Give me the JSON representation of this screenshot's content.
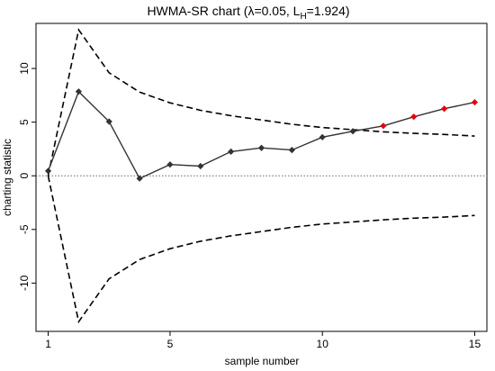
{
  "chart_data": {
    "type": "line",
    "title": "HWMA-SR chart (λ=0.05, L",
    "title_subscript": "H",
    "title_suffix": "=1.924)",
    "xlabel": "sample number",
    "ylabel": "charting statistic",
    "xlim": [
      0.6,
      15.4
    ],
    "ylim": [
      -14.5,
      14.2
    ],
    "x_ticks": [
      1,
      5,
      10,
      15
    ],
    "y_ticks": [
      -10,
      -5,
      0,
      5,
      10
    ],
    "x_tick_labels": [
      "1",
      "5",
      "10",
      "15"
    ],
    "y_tick_labels": [
      "-10",
      "-5",
      "0",
      "5",
      "10"
    ],
    "center_line": 0,
    "grid": false,
    "series": [
      {
        "role": "statistic",
        "x": [
          1,
          2,
          3,
          4,
          5,
          6,
          7,
          8,
          9,
          10,
          11,
          12,
          13,
          14,
          15
        ],
        "values": [
          0.45,
          7.85,
          5.05,
          -0.25,
          1.05,
          0.9,
          2.25,
          2.6,
          2.4,
          3.6,
          4.15,
          4.65,
          5.5,
          6.25,
          6.85
        ],
        "out_of_control": [
          false,
          false,
          false,
          false,
          false,
          false,
          false,
          false,
          false,
          false,
          false,
          true,
          true,
          true,
          true
        ]
      },
      {
        "role": "upper-limit",
        "x": [
          1,
          2,
          3,
          4,
          5,
          6,
          7,
          8,
          9,
          10,
          11,
          12,
          13,
          14,
          15
        ],
        "values": [
          0.0,
          13.6,
          9.6,
          7.8,
          6.8,
          6.1,
          5.6,
          5.2,
          4.8,
          4.5,
          4.3,
          4.1,
          3.95,
          3.85,
          3.7
        ]
      },
      {
        "role": "lower-limit",
        "x": [
          1,
          2,
          3,
          4,
          5,
          6,
          7,
          8,
          9,
          10,
          11,
          12,
          13,
          14,
          15
        ],
        "values": [
          0.0,
          -13.6,
          -9.6,
          -7.8,
          -6.8,
          -6.1,
          -5.6,
          -5.2,
          -4.8,
          -4.5,
          -4.3,
          -4.1,
          -3.95,
          -3.85,
          -3.7
        ]
      }
    ],
    "colors": {
      "statistic": "#333333",
      "in_control_marker": "#333333",
      "out_of_control_marker": "#e8000b",
      "limits": "#000000",
      "center_line": "#666666",
      "frame": "#000000"
    }
  }
}
